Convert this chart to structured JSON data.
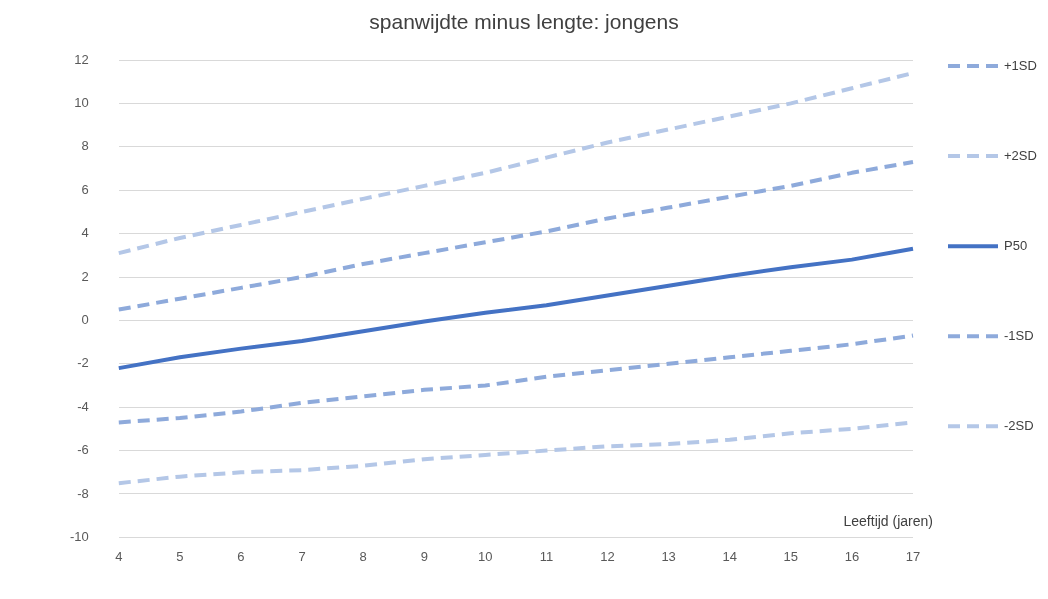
{
  "chart_data": {
    "type": "line",
    "title": "spanwijdte minus lengte: jongens",
    "xlabel": "Leeftijd (jaren)",
    "categories": [
      "4",
      "5",
      "6",
      "7",
      "8",
      "9",
      "10",
      "11",
      "12",
      "13",
      "14",
      "15",
      "16",
      "17"
    ],
    "series": [
      {
        "name": "+1SD",
        "color": "#8eaadb",
        "line_style": "dashed",
        "values": [
          0.5,
          1.0,
          1.5,
          2.0,
          2.6,
          3.1,
          3.6,
          4.1,
          4.7,
          5.2,
          5.7,
          6.2,
          6.8,
          7.3
        ]
      },
      {
        "name": "+2SD",
        "color": "#b4c7e7",
        "line_style": "dashed",
        "values": [
          3.1,
          3.8,
          4.4,
          5.0,
          5.6,
          6.2,
          6.8,
          7.5,
          8.2,
          8.8,
          9.4,
          10.0,
          10.7,
          11.4
        ]
      },
      {
        "name": "P50",
        "color": "#4472c4",
        "line_style": "solid",
        "values": [
          -2.2,
          -1.7,
          -1.3,
          -0.95,
          -0.5,
          -0.05,
          0.35,
          0.7,
          1.15,
          1.6,
          2.05,
          2.45,
          2.8,
          3.3
        ]
      },
      {
        "name": "-1SD",
        "color": "#8eaadb",
        "line_style": "dashed",
        "values": [
          -4.7,
          -4.5,
          -4.2,
          -3.8,
          -3.5,
          -3.2,
          -3.0,
          -2.6,
          -2.3,
          -2.0,
          -1.7,
          -1.4,
          -1.1,
          -0.7
        ]
      },
      {
        "name": "-2SD",
        "color": "#b4c7e7",
        "line_style": "dashed",
        "values": [
          -7.5,
          -7.2,
          -7.0,
          -6.9,
          -6.7,
          -6.4,
          -6.2,
          -6.0,
          -5.8,
          -5.7,
          -5.5,
          -5.2,
          -5.0,
          -4.7
        ]
      }
    ],
    "ylim": [
      -10,
      12
    ],
    "yticks": [
      -10,
      -8,
      -6,
      -4,
      -2,
      0,
      2,
      4,
      6,
      8,
      10,
      12
    ],
    "grid": "y",
    "legend": "right",
    "marker": "none"
  }
}
